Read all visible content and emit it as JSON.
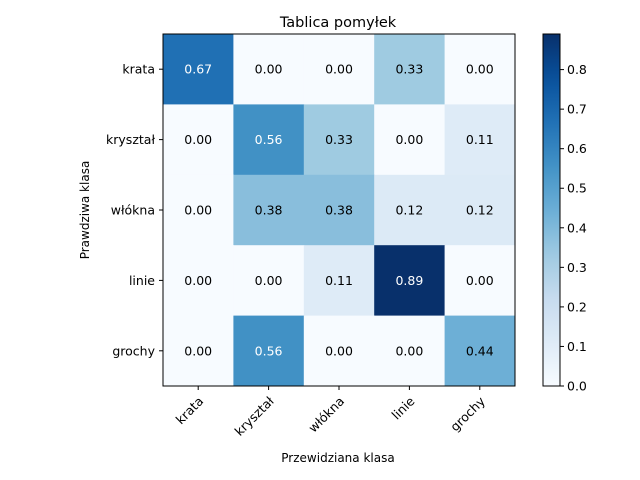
{
  "chart_data": {
    "type": "heatmap",
    "title": "Tablica pomyłek",
    "xlabel": "Przewidziana klasa",
    "ylabel": "Prawdziwa klasa",
    "x_categories": [
      "krata",
      "kryształ",
      "włókna",
      "linie",
      "grochy"
    ],
    "y_categories": [
      "krata",
      "kryształ",
      "włókna",
      "linie",
      "grochy"
    ],
    "values": [
      [
        0.67,
        0.0,
        0.0,
        0.33,
        0.0
      ],
      [
        0.0,
        0.56,
        0.33,
        0.0,
        0.11
      ],
      [
        0.0,
        0.38,
        0.38,
        0.12,
        0.12
      ],
      [
        0.0,
        0.0,
        0.11,
        0.89,
        0.0
      ],
      [
        0.0,
        0.56,
        0.0,
        0.0,
        0.44
      ]
    ],
    "value_labels": [
      [
        "0.67",
        "0.00",
        "0.00",
        "0.33",
        "0.00"
      ],
      [
        "0.00",
        "0.56",
        "0.33",
        "0.00",
        "0.11"
      ],
      [
        "0.00",
        "0.38",
        "0.38",
        "0.12",
        "0.12"
      ],
      [
        "0.00",
        "0.00",
        "0.11",
        "0.89",
        "0.00"
      ],
      [
        "0.00",
        "0.56",
        "0.00",
        "0.00",
        "0.44"
      ]
    ],
    "colormap": "Blues",
    "vmin": 0.0,
    "vmax": 0.89,
    "colorbar_ticks": [
      "0.0",
      "0.1",
      "0.2",
      "0.3",
      "0.4",
      "0.5",
      "0.6",
      "0.7",
      "0.8"
    ],
    "grid": false,
    "x_tick_rotation_deg": 45
  }
}
